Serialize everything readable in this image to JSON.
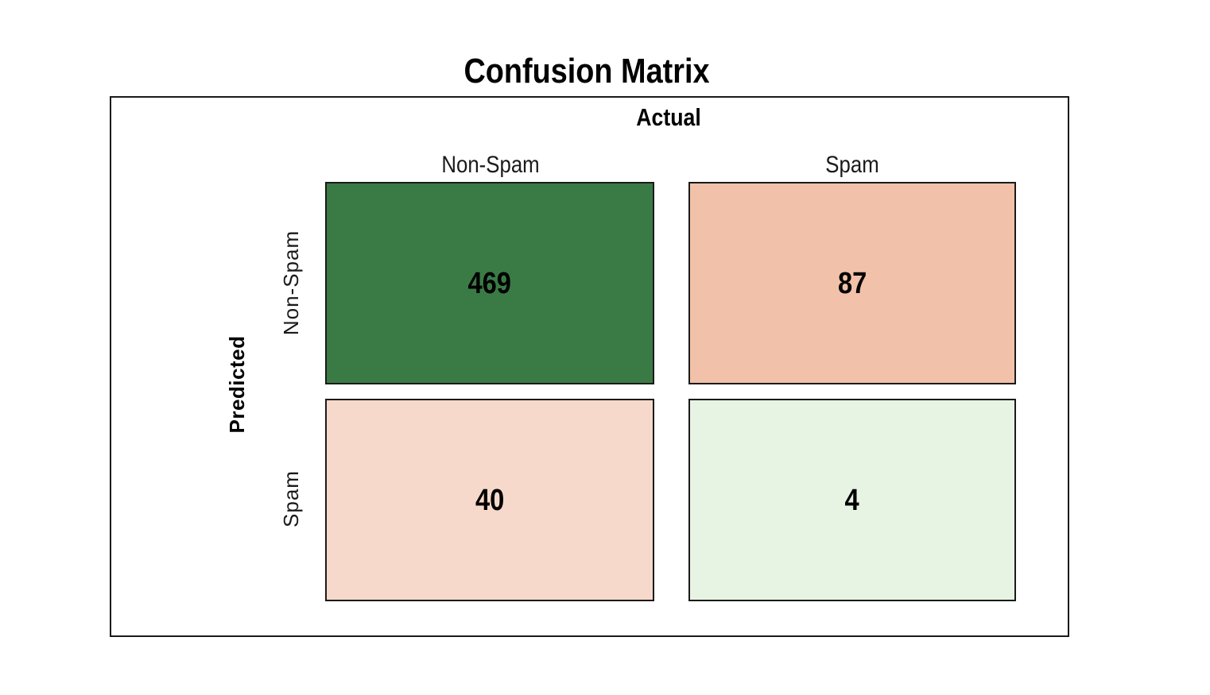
{
  "chart_data": {
    "type": "heatmap",
    "title": "Confusion Matrix",
    "xlabel": "Actual",
    "ylabel": "Predicted",
    "columns": [
      "Non-Spam",
      "Spam"
    ],
    "rows": [
      "Non-Spam",
      "Spam"
    ],
    "values": [
      [
        469,
        87
      ],
      [
        40,
        4
      ]
    ],
    "cell_colors": [
      [
        "#3a7b45",
        "#f2c1a9"
      ],
      [
        "#f6d9ca",
        "#e8f4e3"
      ]
    ],
    "grid": false,
    "legend": "none"
  }
}
